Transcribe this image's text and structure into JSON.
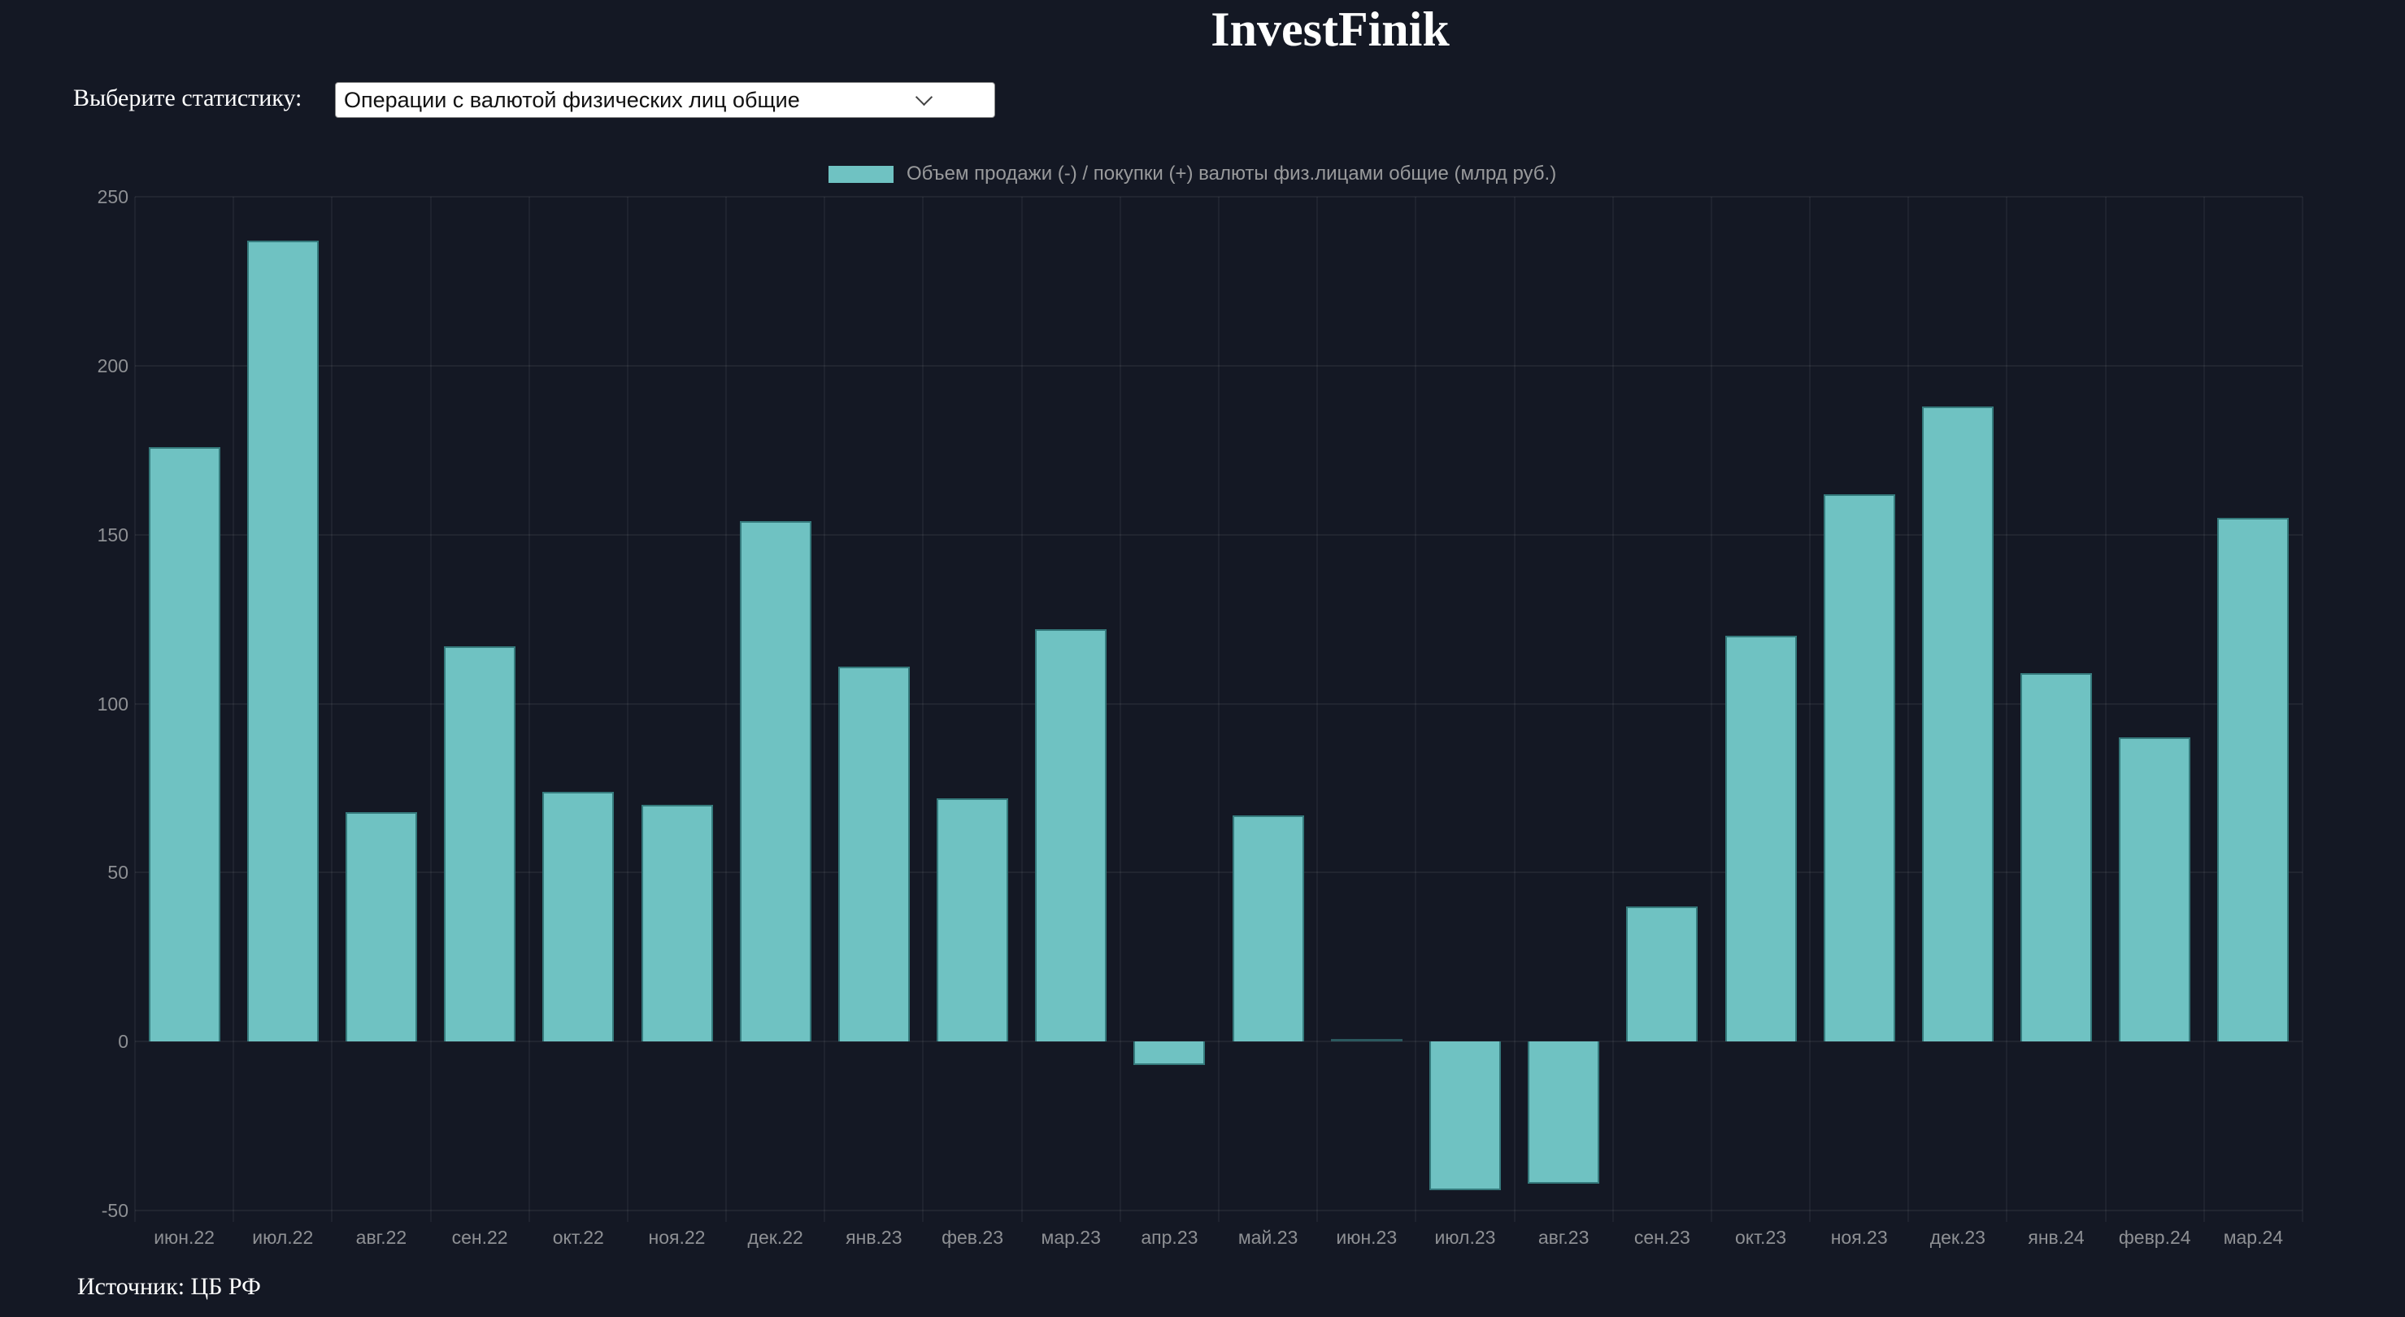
{
  "header": {
    "title": "InvestFinik"
  },
  "controls": {
    "label": "Выберите статистику:",
    "select_value": "Операции с валютой физических лиц общие"
  },
  "footer": {
    "source": "Источник: ЦБ РФ"
  },
  "colors": {
    "background": "#141824",
    "bar_fill": "#6fc2c2",
    "bar_border": "#357a7c",
    "legend_text": "#999a9c",
    "tick_text": "#8e9094"
  },
  "chart_data": {
    "type": "bar",
    "title": "",
    "legend": "Объем продажи (-) / покупки (+) валюты физ.лицами общие (млрд руб.)",
    "legend_position": "top",
    "grid": true,
    "categories": [
      "июн.22",
      "июл.22",
      "авг.22",
      "сен.22",
      "окт.22",
      "ноя.22",
      "дек.22",
      "янв.23",
      "фев.23",
      "мар.23",
      "апр.23",
      "май.23",
      "июн.23",
      "июл.23",
      "авг.23",
      "сен.23",
      "окт.23",
      "ноя.23",
      "дек.23",
      "янв.24",
      "февр.24",
      "мар.24"
    ],
    "values": [
      176,
      237,
      68,
      117,
      74,
      70,
      154,
      111,
      72,
      122,
      -7,
      67,
      0,
      -44,
      -42,
      40,
      120,
      162,
      188,
      109,
      90,
      155
    ],
    "xlabel": "",
    "ylabel": "млрд руб.",
    "ylim": [
      -50,
      250
    ],
    "yticks": [
      250,
      200,
      150,
      100,
      50,
      0,
      -50
    ]
  }
}
